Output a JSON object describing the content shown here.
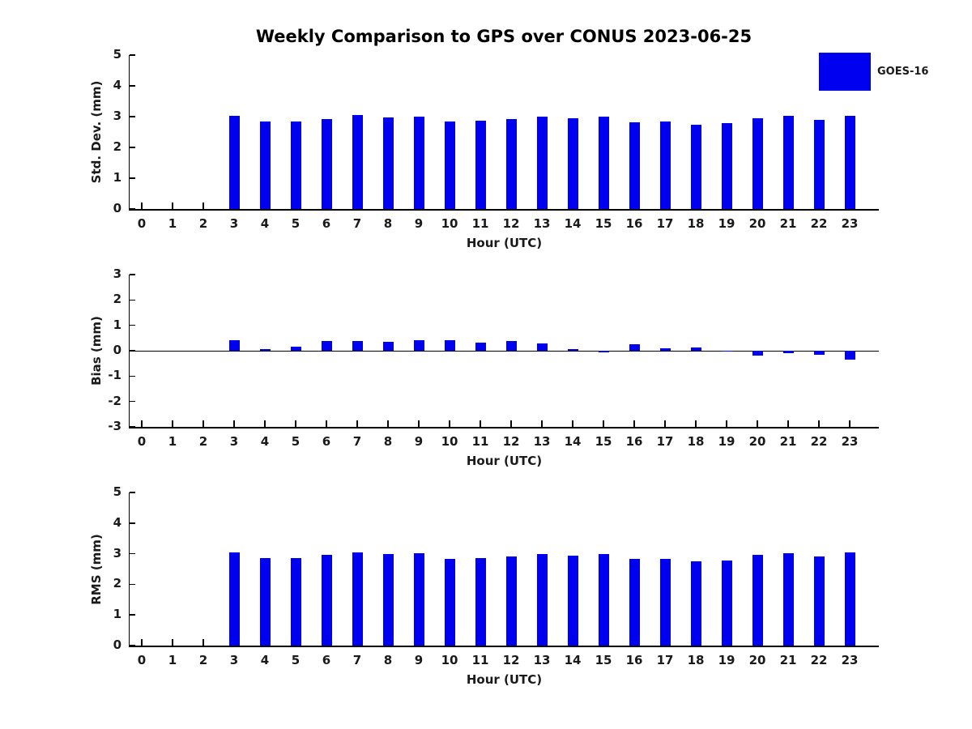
{
  "title": "Weekly Comparison to GPS over CONUS 2023-06-25",
  "legend": {
    "position": "top-right",
    "entries": [
      {
        "label": "GOES-16",
        "color": "#0000f0"
      }
    ]
  },
  "colors": {
    "bar_fill": "#0000f0",
    "axis": "#000000",
    "text": "#1a1a1a"
  },
  "chart_data": [
    {
      "type": "bar",
      "ylabel": "Std. Dev. (mm)",
      "xlabel": "Hour (UTC)",
      "ylim": [
        0,
        5
      ],
      "yticks": [
        5,
        4,
        3,
        2,
        1,
        0
      ],
      "grid": false,
      "categories": [
        "0",
        "1",
        "2",
        "3",
        "4",
        "5",
        "6",
        "7",
        "8",
        "9",
        "10",
        "11",
        "12",
        "13",
        "14",
        "15",
        "16",
        "17",
        "18",
        "19",
        "20",
        "21",
        "22",
        "23"
      ],
      "series": [
        {
          "name": "GOES-16",
          "values": [
            0,
            0,
            0,
            3.03,
            2.85,
            2.85,
            2.93,
            3.06,
            2.97,
            3.01,
            2.83,
            2.88,
            2.92,
            3.0,
            2.96,
            3.0,
            2.82,
            2.85,
            2.75,
            2.8,
            2.96,
            3.02,
            2.9,
            3.02
          ]
        }
      ]
    },
    {
      "type": "bar",
      "ylabel": "Bias (mm)",
      "xlabel": "Hour (UTC)",
      "ylim": [
        -3,
        3
      ],
      "yticks": [
        3,
        2,
        1,
        0,
        -1,
        -2,
        -3
      ],
      "grid": false,
      "zero_line": true,
      "categories": [
        "0",
        "1",
        "2",
        "3",
        "4",
        "5",
        "6",
        "7",
        "8",
        "9",
        "10",
        "11",
        "12",
        "13",
        "14",
        "15",
        "16",
        "17",
        "18",
        "19",
        "20",
        "21",
        "22",
        "23"
      ],
      "series": [
        {
          "name": "GOES-16",
          "values": [
            0,
            0,
            0,
            0.4,
            0.05,
            0.17,
            0.38,
            0.39,
            0.35,
            0.42,
            0.43,
            0.31,
            0.39,
            0.29,
            0.05,
            -0.05,
            0.25,
            0.08,
            0.13,
            0.01,
            -0.18,
            -0.08,
            -0.17,
            -0.36
          ]
        }
      ]
    },
    {
      "type": "bar",
      "ylabel": "RMS (mm)",
      "xlabel": "Hour (UTC)",
      "ylim": [
        0,
        5
      ],
      "yticks": [
        5,
        4,
        3,
        2,
        1,
        0
      ],
      "grid": false,
      "categories": [
        "0",
        "1",
        "2",
        "3",
        "4",
        "5",
        "6",
        "7",
        "8",
        "9",
        "10",
        "11",
        "12",
        "13",
        "14",
        "15",
        "16",
        "17",
        "18",
        "19",
        "20",
        "21",
        "22",
        "23"
      ],
      "series": [
        {
          "name": "GOES-16",
          "values": [
            0,
            0,
            0,
            3.05,
            2.85,
            2.85,
            2.95,
            3.05,
            2.98,
            3.02,
            2.82,
            2.87,
            2.92,
            3.0,
            2.93,
            3.0,
            2.82,
            2.83,
            2.75,
            2.78,
            2.95,
            3.02,
            2.9,
            3.05
          ]
        }
      ]
    }
  ]
}
